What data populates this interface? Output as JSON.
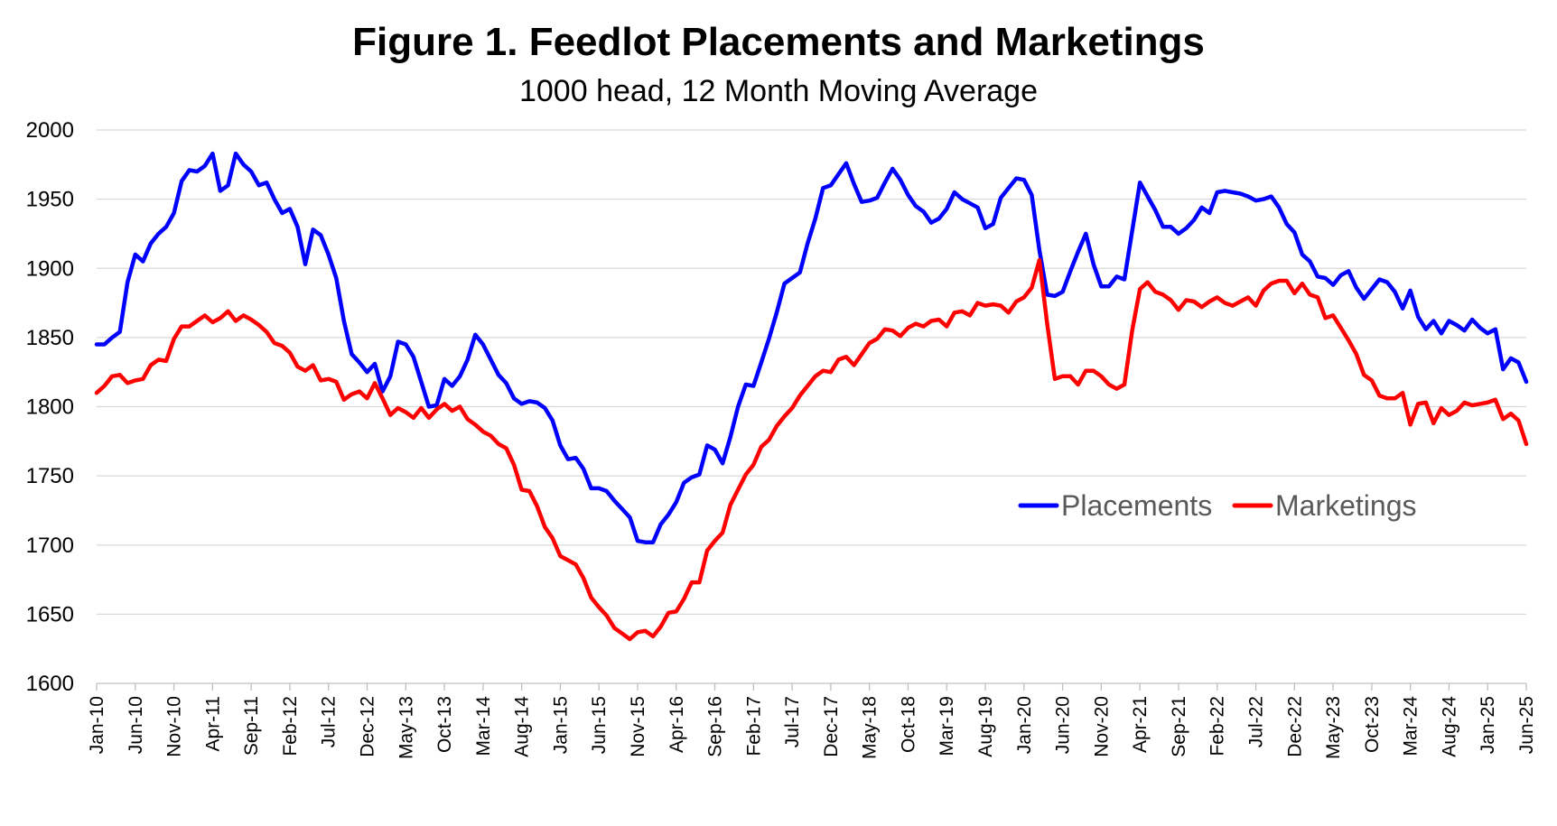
{
  "chart_data": {
    "type": "line",
    "title": "Figure 1. Feedlot Placements and Marketings",
    "subtitle": "1000 head, 12 Month Moving Average",
    "xlabel": "",
    "ylabel": "",
    "ylim": [
      1600,
      2000
    ],
    "yticks": [
      "1600",
      "1650",
      "1700",
      "1750",
      "1800",
      "1850",
      "1900",
      "1950",
      "2000"
    ],
    "x_start": "Jan-10",
    "x_end": "Jun-25",
    "xticks": [
      "Jan-10",
      "Jun-10",
      "Nov-10",
      "Apr-11",
      "Sep-11",
      "Feb-12",
      "Jul-12",
      "Dec-12",
      "May-13",
      "Oct-13",
      "Mar-14",
      "Aug-14",
      "Jan-15",
      "Jun-15",
      "Nov-15",
      "Apr-16",
      "Sep-16",
      "Feb-17",
      "Jul-17",
      "Dec-17",
      "May-18",
      "Oct-18",
      "Mar-19",
      "Aug-19",
      "Jan-20",
      "Jun-20",
      "Nov-20",
      "Apr-21",
      "Sep-21",
      "Feb-22",
      "Jul-22",
      "Dec-22",
      "May-23",
      "Oct-23",
      "Mar-24",
      "Aug-24",
      "Jan-25",
      "Jun-25"
    ],
    "grid": true,
    "legend_position": "right-center",
    "series": [
      {
        "name": "Placements",
        "color": "#0000FF",
        "values": [
          1845,
          1845,
          1850,
          1854,
          1890,
          1910,
          1905,
          1918,
          1925,
          1930,
          1940,
          1963,
          1971,
          1970,
          1974,
          1983,
          1956,
          1960,
          1983,
          1975,
          1970,
          1960,
          1962,
          1950,
          1940,
          1943,
          1930,
          1903,
          1928,
          1924,
          1910,
          1893,
          1862,
          1838,
          1832,
          1825,
          1831,
          1811,
          1822,
          1847,
          1845,
          1836,
          1818,
          1800,
          1801,
          1820,
          1815,
          1822,
          1834,
          1852,
          1845,
          1834,
          1823,
          1817,
          1806,
          1802,
          1804,
          1803,
          1799,
          1790,
          1772,
          1762,
          1763,
          1755,
          1741,
          1741,
          1739,
          1732,
          1726,
          1720,
          1703,
          1702,
          1702,
          1715,
          1722,
          1731,
          1745,
          1749,
          1751,
          1772,
          1769,
          1759,
          1778,
          1800,
          1816,
          1815,
          1832,
          1849,
          1868,
          1889,
          1893,
          1897,
          1918,
          1936,
          1958,
          1960,
          1968,
          1976,
          1961,
          1948,
          1949,
          1951,
          1962,
          1972,
          1964,
          1953,
          1945,
          1941,
          1933,
          1936,
          1943,
          1955,
          1950,
          1947,
          1944,
          1929,
          1932,
          1951,
          1958,
          1965,
          1964,
          1953,
          1913,
          1881,
          1880,
          1883,
          1898,
          1912,
          1925,
          1903,
          1887,
          1887,
          1894,
          1892,
          1927,
          1962,
          1952,
          1942,
          1930,
          1930,
          1925,
          1929,
          1935,
          1944,
          1940,
          1955,
          1956,
          1955,
          1954,
          1952,
          1949,
          1950,
          1952,
          1944,
          1932,
          1926,
          1910,
          1905,
          1894,
          1893,
          1888,
          1895,
          1898,
          1886,
          1878,
          1885,
          1892,
          1890,
          1883,
          1871,
          1884,
          1865,
          1856,
          1862,
          1853,
          1862,
          1859,
          1855,
          1863,
          1857,
          1853,
          1856,
          1827,
          1835,
          1832,
          1818
        ]
      },
      {
        "name": "Marketings",
        "color": "#FF0000",
        "values": [
          1810,
          1815,
          1822,
          1823,
          1817,
          1819,
          1820,
          1830,
          1834,
          1833,
          1849,
          1858,
          1858,
          1862,
          1866,
          1861,
          1864,
          1869,
          1862,
          1866,
          1863,
          1859,
          1854,
          1846,
          1844,
          1839,
          1829,
          1826,
          1830,
          1819,
          1820,
          1818,
          1805,
          1809,
          1811,
          1806,
          1817,
          1806,
          1794,
          1799,
          1796,
          1792,
          1799,
          1792,
          1798,
          1802,
          1797,
          1800,
          1791,
          1787,
          1782,
          1779,
          1773,
          1770,
          1758,
          1740,
          1739,
          1728,
          1713,
          1705,
          1692,
          1689,
          1686,
          1676,
          1662,
          1655,
          1649,
          1640,
          1636,
          1632,
          1637,
          1638,
          1634,
          1641,
          1651,
          1652,
          1661,
          1673,
          1673,
          1696,
          1703,
          1709,
          1729,
          1740,
          1751,
          1758,
          1771,
          1776,
          1786,
          1793,
          1799,
          1808,
          1815,
          1822,
          1826,
          1825,
          1834,
          1836,
          1830,
          1838,
          1846,
          1849,
          1856,
          1855,
          1851,
          1857,
          1860,
          1858,
          1862,
          1863,
          1858,
          1868,
          1869,
          1866,
          1875,
          1873,
          1874,
          1873,
          1868,
          1876,
          1879,
          1886,
          1906,
          1860,
          1820,
          1822,
          1822,
          1816,
          1826,
          1826,
          1822,
          1816,
          1813,
          1816,
          1855,
          1885,
          1890,
          1883,
          1881,
          1877,
          1870,
          1877,
          1876,
          1872,
          1876,
          1879,
          1875,
          1873,
          1876,
          1879,
          1873,
          1884,
          1889,
          1891,
          1891,
          1882,
          1889,
          1881,
          1879,
          1864,
          1866,
          1857,
          1848,
          1838,
          1823,
          1819,
          1808,
          1806,
          1806,
          1810,
          1787,
          1802,
          1803,
          1788,
          1799,
          1794,
          1797,
          1803,
          1801,
          1802,
          1803,
          1805,
          1791,
          1795,
          1790,
          1773
        ]
      }
    ]
  }
}
